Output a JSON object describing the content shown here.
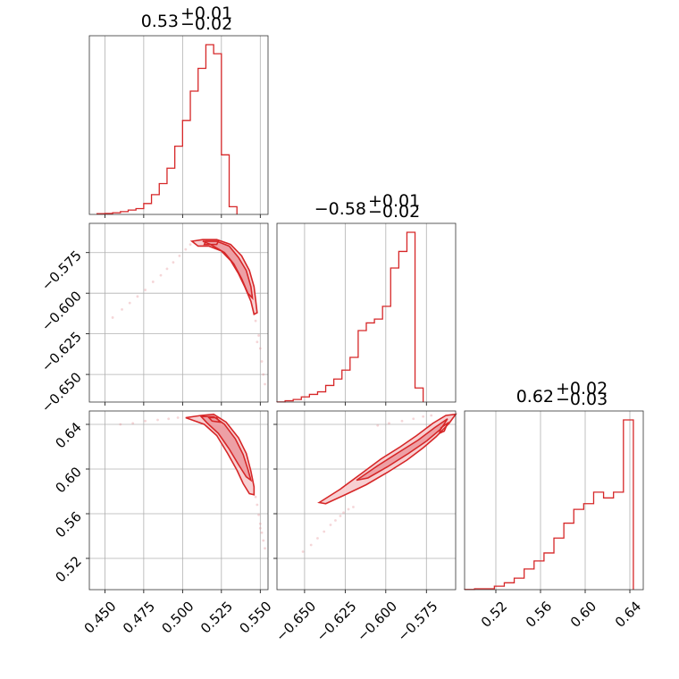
{
  "chart_data": {
    "type": "corner",
    "color": "#d62728",
    "parameters": [
      {
        "title": {
          "median": "0.53",
          "upper": "+0.01",
          "lower": "−0.02"
        },
        "range": [
          0.44,
          0.555
        ],
        "ticks": [
          0.45,
          0.475,
          0.5,
          0.525,
          0.55
        ]
      },
      {
        "title": {
          "median": "−0.58",
          "upper": "+0.01",
          "lower": "−0.02"
        },
        "range": [
          -0.667,
          -0.557
        ],
        "ticks": [
          -0.65,
          -0.625,
          -0.6,
          -0.575
        ]
      },
      {
        "title": {
          "median": "0.62",
          "upper": "+0.02",
          "lower": "−0.03"
        },
        "range": [
          0.492,
          0.652
        ],
        "ticks": [
          0.52,
          0.56,
          0.6,
          0.64
        ]
      }
    ],
    "tick_labels": {
      "p0": [
        "0.450",
        "0.475",
        "0.500",
        "0.525",
        "0.550"
      ],
      "p1": [
        "−0.650",
        "−0.625",
        "−0.600",
        "−0.575"
      ],
      "p2": [
        "0.52",
        "0.56",
        "0.60",
        "0.64"
      ]
    },
    "histograms": [
      {
        "edges_start": 0.445,
        "bin_width": 0.005,
        "values": [
          0.4,
          0.5,
          0.9,
          1.5,
          2.3,
          3.1,
          5.8,
          10.5,
          16.4,
          24.6,
          36.3,
          50.0,
          65.6,
          77.7,
          90.3,
          85.5,
          31.7,
          4.1
        ]
      },
      {
        "edges_start": -0.667,
        "bin_width": 0.005,
        "values": [
          0.1,
          1.0,
          2.0,
          4.0,
          6.0,
          8.0,
          13.0,
          18.0,
          25.0,
          35.0,
          56.0,
          62.0,
          65.0,
          75.0,
          105.0,
          118.0,
          133.0,
          11.0
        ]
      },
      {
        "edges_start": 0.492,
        "bin_width": 0.00889,
        "values": [
          0.2,
          0.8,
          0.8,
          3.0,
          6.0,
          10.0,
          18.0,
          25.0,
          32.0,
          45.0,
          58.0,
          70.0,
          75.0,
          85.0,
          80.0,
          85.0,
          148.0
        ]
      }
    ],
    "samples_1_0": [
      [
        0.455,
        -0.615
      ],
      [
        0.461,
        -0.61
      ],
      [
        0.466,
        -0.606
      ],
      [
        0.471,
        -0.602
      ],
      [
        0.476,
        -0.598
      ],
      [
        0.481,
        -0.593
      ],
      [
        0.486,
        -0.589
      ],
      [
        0.49,
        -0.585
      ],
      [
        0.494,
        -0.581
      ],
      [
        0.498,
        -0.577
      ],
      [
        0.502,
        -0.573
      ],
      [
        0.505,
        -0.57
      ],
      [
        0.547,
        -0.617
      ],
      [
        0.549,
        -0.626
      ],
      [
        0.55,
        -0.634
      ],
      [
        0.551,
        -0.642
      ],
      [
        0.552,
        -0.65
      ],
      [
        0.553,
        -0.656
      ],
      [
        0.546,
        -0.612
      ],
      [
        0.548,
        -0.63
      ]
    ],
    "samples_2_0": [
      [
        0.46,
        0.64
      ],
      [
        0.468,
        0.641
      ],
      [
        0.476,
        0.643
      ],
      [
        0.484,
        0.644
      ],
      [
        0.491,
        0.645
      ],
      [
        0.497,
        0.646
      ],
      [
        0.548,
        0.568
      ],
      [
        0.549,
        0.559
      ],
      [
        0.55,
        0.551
      ],
      [
        0.551,
        0.543
      ],
      [
        0.552,
        0.536
      ],
      [
        0.553,
        0.529
      ],
      [
        0.547,
        0.575
      ],
      [
        0.55,
        0.547
      ]
    ],
    "samples_2_1": [
      [
        -0.651,
        0.526
      ],
      [
        -0.646,
        0.532
      ],
      [
        -0.642,
        0.538
      ],
      [
        -0.638,
        0.544
      ],
      [
        -0.634,
        0.55
      ],
      [
        -0.631,
        0.554
      ],
      [
        -0.628,
        0.558
      ],
      [
        -0.626,
        0.561
      ],
      [
        -0.623,
        0.564
      ],
      [
        -0.62,
        0.566
      ],
      [
        -0.605,
        0.639
      ],
      [
        -0.598,
        0.641
      ],
      [
        -0.59,
        0.643
      ],
      [
        -0.583,
        0.645
      ],
      [
        -0.577,
        0.647
      ],
      [
        -0.572,
        0.648
      ]
    ],
    "contours_1_0": {
      "outer": [
        [
          0.506,
          -0.568
        ],
        [
          0.513,
          -0.567
        ],
        [
          0.522,
          -0.567
        ],
        [
          0.531,
          -0.57
        ],
        [
          0.538,
          -0.577
        ],
        [
          0.543,
          -0.586
        ],
        [
          0.546,
          -0.596
        ],
        [
          0.547,
          -0.604
        ],
        [
          0.548,
          -0.612
        ],
        [
          0.546,
          -0.613
        ],
        [
          0.544,
          -0.605
        ],
        [
          0.54,
          -0.596
        ],
        [
          0.536,
          -0.588
        ],
        [
          0.531,
          -0.58
        ],
        [
          0.525,
          -0.574
        ],
        [
          0.517,
          -0.571
        ],
        [
          0.51,
          -0.571
        ]
      ],
      "inner": [
        [
          0.513,
          -0.568
        ],
        [
          0.522,
          -0.568
        ],
        [
          0.53,
          -0.571
        ],
        [
          0.536,
          -0.578
        ],
        [
          0.541,
          -0.586
        ],
        [
          0.544,
          -0.596
        ],
        [
          0.545,
          -0.603
        ],
        [
          0.542,
          -0.6
        ],
        [
          0.538,
          -0.591
        ],
        [
          0.533,
          -0.582
        ],
        [
          0.527,
          -0.575
        ],
        [
          0.518,
          -0.57
        ]
      ],
      "core": [
        [
          0.515,
          -0.568
        ],
        [
          0.523,
          -0.568
        ],
        [
          0.522,
          -0.57
        ],
        [
          0.514,
          -0.57
        ]
      ]
    },
    "contours_2_0": {
      "outer": [
        [
          0.502,
          0.646
        ],
        [
          0.512,
          0.648
        ],
        [
          0.52,
          0.649
        ],
        [
          0.528,
          0.642
        ],
        [
          0.536,
          0.628
        ],
        [
          0.541,
          0.614
        ],
        [
          0.544,
          0.598
        ],
        [
          0.546,
          0.584
        ],
        [
          0.546,
          0.577
        ],
        [
          0.543,
          0.578
        ],
        [
          0.539,
          0.587
        ],
        [
          0.535,
          0.599
        ],
        [
          0.529,
          0.614
        ],
        [
          0.522,
          0.63
        ],
        [
          0.514,
          0.64
        ],
        [
          0.506,
          0.644
        ]
      ],
      "inner": [
        [
          0.512,
          0.647
        ],
        [
          0.52,
          0.647
        ],
        [
          0.527,
          0.64
        ],
        [
          0.534,
          0.627
        ],
        [
          0.539,
          0.613
        ],
        [
          0.542,
          0.6
        ],
        [
          0.544,
          0.59
        ],
        [
          0.541,
          0.593
        ],
        [
          0.536,
          0.604
        ],
        [
          0.53,
          0.618
        ],
        [
          0.523,
          0.632
        ],
        [
          0.516,
          0.641
        ]
      ],
      "core": [
        [
          0.517,
          0.646
        ],
        [
          0.522,
          0.646
        ],
        [
          0.524,
          0.642
        ],
        [
          0.519,
          0.643
        ]
      ]
    },
    "contours_2_1": {
      "outer": [
        [
          -0.641,
          0.57
        ],
        [
          -0.628,
          0.582
        ],
        [
          -0.615,
          0.596
        ],
        [
          -0.603,
          0.609
        ],
        [
          -0.591,
          0.62
        ],
        [
          -0.581,
          0.63
        ],
        [
          -0.571,
          0.641
        ],
        [
          -0.563,
          0.648
        ],
        [
          -0.557,
          0.649
        ],
        [
          -0.561,
          0.641
        ],
        [
          -0.569,
          0.629
        ],
        [
          -0.577,
          0.619
        ],
        [
          -0.587,
          0.608
        ],
        [
          -0.599,
          0.597
        ],
        [
          -0.612,
          0.586
        ],
        [
          -0.625,
          0.577
        ],
        [
          -0.637,
          0.569
        ]
      ],
      "inner": [
        [
          -0.618,
          0.59
        ],
        [
          -0.605,
          0.603
        ],
        [
          -0.592,
          0.615
        ],
        [
          -0.58,
          0.626
        ],
        [
          -0.57,
          0.637
        ],
        [
          -0.562,
          0.645
        ],
        [
          -0.566,
          0.636
        ],
        [
          -0.575,
          0.625
        ],
        [
          -0.586,
          0.614
        ],
        [
          -0.599,
          0.602
        ],
        [
          -0.611,
          0.592
        ]
      ],
      "core": [
        [
          -0.566,
          0.637
        ],
        [
          -0.562,
          0.641
        ],
        [
          -0.564,
          0.634
        ],
        [
          -0.567,
          0.632
        ]
      ]
    }
  }
}
